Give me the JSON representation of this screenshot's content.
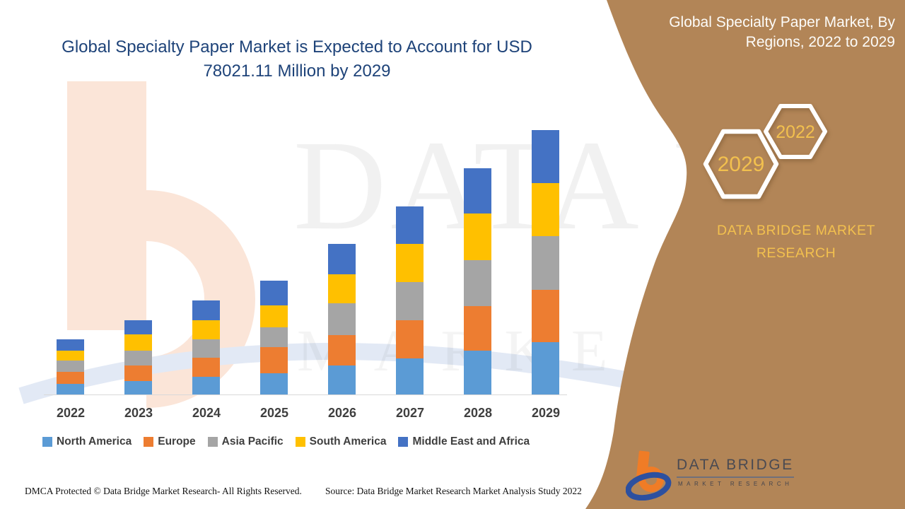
{
  "header": {
    "title": "Global Specialty Paper Market is Expected to Account for USD 78021.11 Million by 2029",
    "title_color": "#1e4379"
  },
  "side_panel": {
    "heading": "Global Specialty Paper Market, By Regions, 2022 to 2029",
    "hexagons": [
      {
        "label": "2029"
      },
      {
        "label": "2022"
      }
    ],
    "brand": "DATA BRIDGE MARKET RESEARCH",
    "colors": {
      "background": "#b28557",
      "gold": "#f2c04e"
    }
  },
  "watermarks": {
    "line1": "DATA BRIDGE",
    "line2": "MARKET RESEARCH"
  },
  "brand_logo": {
    "name": "DATA BRIDGE",
    "tagline": "MARKET RESEARCH"
  },
  "footer": {
    "dmca": "DMCA Protected © Data Bridge Market Research- All Rights Reserved.",
    "source": "Source: Data Bridge Market Research Market Analysis Study 2022"
  },
  "chart_data": {
    "type": "bar",
    "stacked": true,
    "title": "Global Specialty Paper Market, By Regions, 2022 to 2029",
    "unit": "USD Million",
    "xlabel": "",
    "ylabel": "",
    "ylim": [
      0,
      80000
    ],
    "grid": false,
    "legend_position": "bottom",
    "categories": [
      "2022",
      "2023",
      "2024",
      "2025",
      "2026",
      "2027",
      "2028",
      "2029"
    ],
    "series": [
      {
        "name": "North America",
        "color": "#5B9BD5",
        "values": [
          3260,
          4180,
          5350,
          6470,
          8710,
          10790,
          13090,
          15530
        ]
      },
      {
        "name": "Europe",
        "color": "#ED7D31",
        "values": [
          3550,
          4590,
          5640,
          7660,
          9040,
          11280,
          13220,
          15580
        ]
      },
      {
        "name": "Asia Pacific",
        "color": "#A5A5A5",
        "values": [
          3340,
          4380,
          5370,
          5930,
          9270,
          11280,
          13450,
          15740
        ]
      },
      {
        "name": "South America",
        "color": "#FFC000",
        "values": [
          2920,
          4800,
          5780,
          6470,
          8560,
          11130,
          13780,
          15660
        ]
      },
      {
        "name": "Middle East and Africa",
        "color": "#4472C4",
        "values": [
          3340,
          4180,
          5760,
          7160,
          8900,
          11150,
          13220,
          15511.11
        ]
      }
    ],
    "totals_estimated": [
      16410,
      22130,
      27900,
      33690,
      44480,
      55630,
      66760,
      78021.11
    ],
    "note": "Segment values estimated from bar pixel heights; 2029 total stated as USD 78021.11 Million in the title."
  }
}
